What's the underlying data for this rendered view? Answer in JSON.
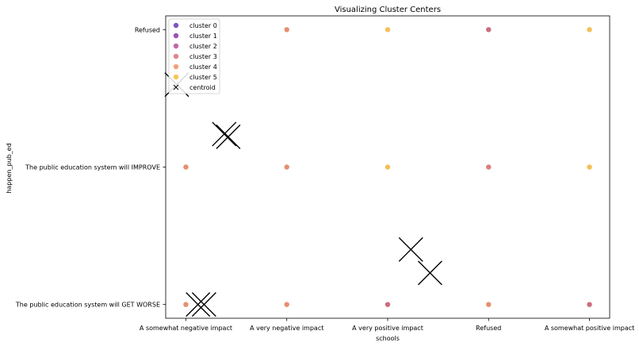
{
  "chart_data": {
    "type": "scatter",
    "title": "Visualizing Cluster Centers",
    "xlabel": "schools",
    "ylabel": "happen_pub_ed",
    "x_categories": [
      "A somewhat negative impact",
      "A very negative impact",
      "A very positive impact",
      "Refused",
      "A somewhat positive impact"
    ],
    "y_categories": [
      "The public education system will GET WORSE",
      "The public education system will IMPROVE",
      "Refused"
    ],
    "xlim": [
      -0.2,
      4.2
    ],
    "ylim": [
      -0.1,
      2.1
    ],
    "grid": false,
    "legend_position": "top-left",
    "legend": [
      {
        "label": "cluster 0",
        "color": "#7e57c2"
      },
      {
        "label": "cluster 1",
        "color": "#9c4fb9"
      },
      {
        "label": "cluster 2",
        "color": "#c266a5"
      },
      {
        "label": "cluster 3",
        "color": "#e0848f"
      },
      {
        "label": "cluster 4",
        "color": "#f0a27a"
      },
      {
        "label": "cluster 5",
        "color": "#f5c75a"
      },
      {
        "label": "centroid",
        "color": "#000000"
      }
    ],
    "points": [
      {
        "x": 1,
        "y": 2,
        "color": "#e07b57"
      },
      {
        "x": 2,
        "y": 2,
        "color": "#f2b53a"
      },
      {
        "x": 3,
        "y": 2,
        "color": "#c35469"
      },
      {
        "x": 4,
        "y": 2,
        "color": "#f2b53a"
      },
      {
        "x": 0,
        "y": 1,
        "color": "#e07b57"
      },
      {
        "x": 1,
        "y": 1,
        "color": "#e07b57"
      },
      {
        "x": 2,
        "y": 1,
        "color": "#f2b53a"
      },
      {
        "x": 3,
        "y": 1,
        "color": "#d26866"
      },
      {
        "x": 4,
        "y": 1,
        "color": "#f2b53a"
      },
      {
        "x": 0,
        "y": 0,
        "color": "#e07b57"
      },
      {
        "x": 1,
        "y": 0,
        "color": "#e07b57"
      },
      {
        "x": 2,
        "y": 0,
        "color": "#c35469"
      },
      {
        "x": 3,
        "y": 0,
        "color": "#e07b57"
      },
      {
        "x": 4,
        "y": 0,
        "color": "#c35469"
      }
    ],
    "centroids": [
      {
        "x": -0.09,
        "y": 1.6
      },
      {
        "x": 0.38,
        "y": 1.24
      },
      {
        "x": 0.42,
        "y": 1.22
      },
      {
        "x": 2.23,
        "y": 0.4
      },
      {
        "x": 2.42,
        "y": 0.23
      },
      {
        "x": 0.12,
        "y": 0.0
      },
      {
        "x": 0.18,
        "y": 0.0
      }
    ]
  }
}
